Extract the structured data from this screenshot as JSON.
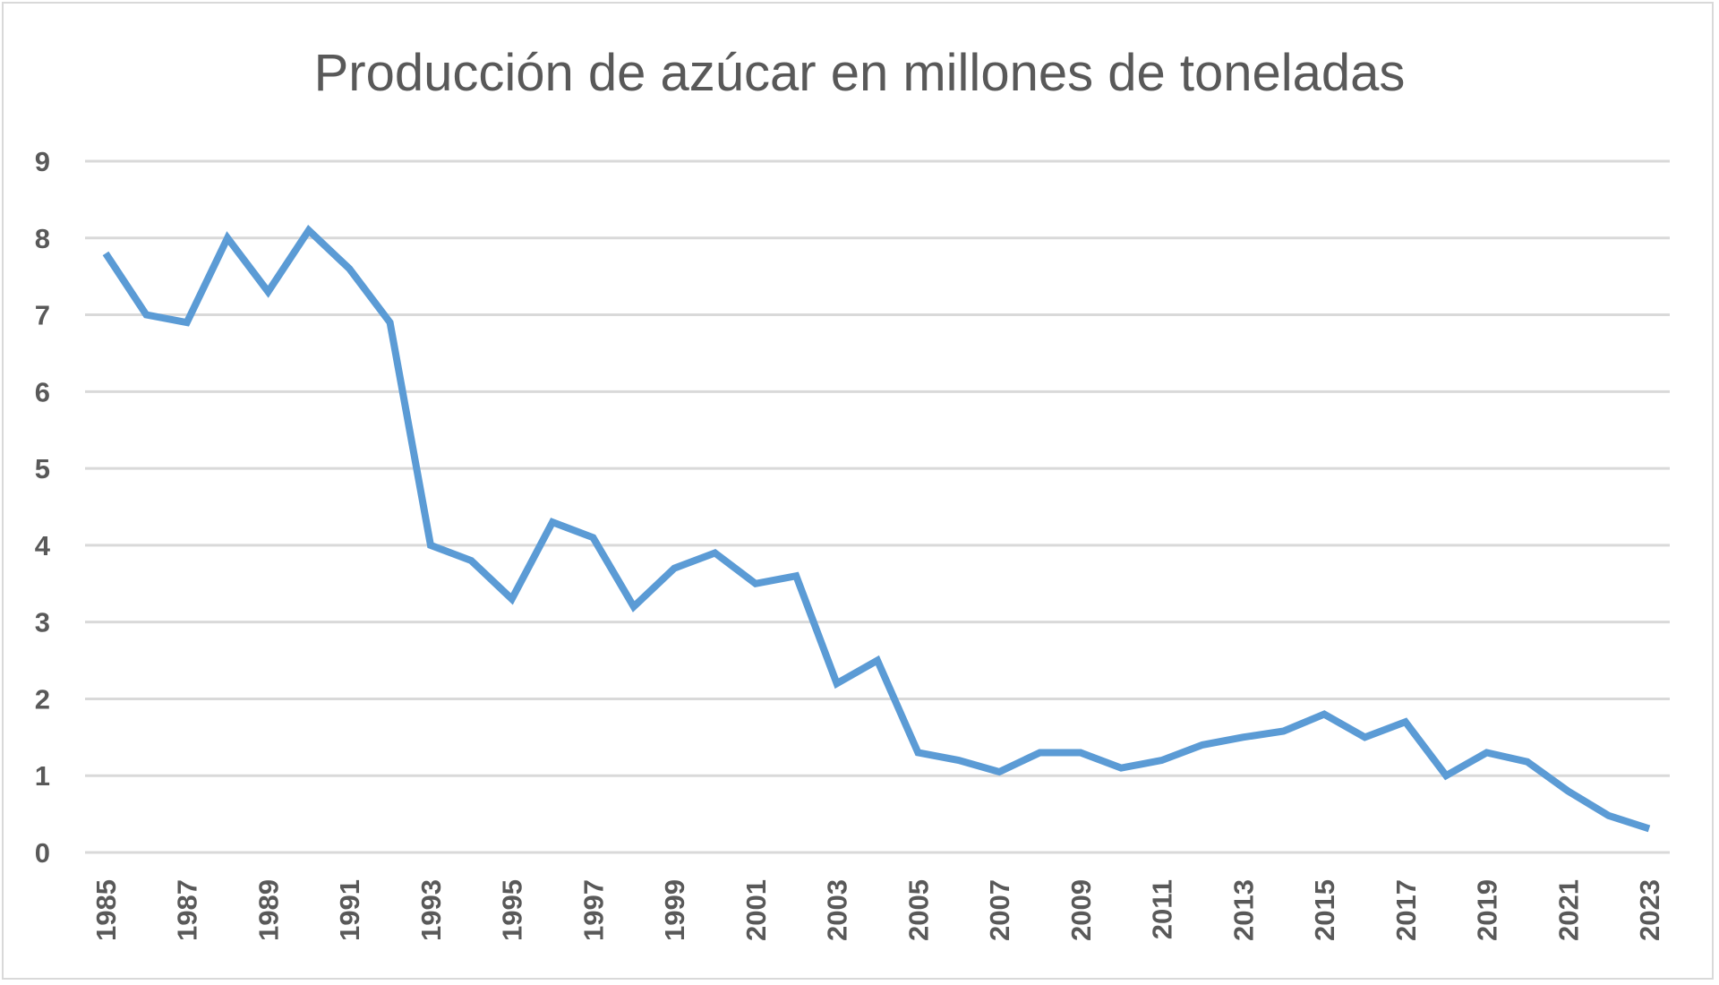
{
  "chart_data": {
    "type": "line",
    "title": "Producción de azúcar en millones de toneladas",
    "xlabel": "",
    "ylabel": "",
    "ylim": [
      0,
      9
    ],
    "y_ticks": [
      "0",
      "1",
      "2",
      "3",
      "4",
      "5",
      "6",
      "7",
      "8",
      "9"
    ],
    "x_tick_labels": [
      "1985",
      "1987",
      "1989",
      "1991",
      "1993",
      "1995",
      "1997",
      "1999",
      "2001",
      "2003",
      "2005",
      "2007",
      "2009",
      "2011",
      "2013",
      "2015",
      "2017",
      "2019",
      "2021",
      "2023"
    ],
    "grid": true,
    "legend": "none",
    "x": [
      1985,
      1986,
      1987,
      1988,
      1989,
      1990,
      1991,
      1992,
      1993,
      1994,
      1995,
      1996,
      1997,
      1998,
      1999,
      2000,
      2001,
      2002,
      2003,
      2004,
      2005,
      2006,
      2007,
      2008,
      2009,
      2010,
      2011,
      2012,
      2013,
      2014,
      2015,
      2016,
      2017,
      2018,
      2019,
      2020,
      2021,
      2022,
      2023
    ],
    "series": [
      {
        "color": "#5b9bd5",
        "values": [
          7.8,
          7.0,
          6.9,
          8.0,
          7.3,
          8.1,
          7.6,
          6.9,
          4.0,
          3.8,
          3.3,
          4.3,
          4.1,
          3.2,
          3.7,
          3.9,
          3.5,
          3.6,
          2.2,
          2.5,
          1.3,
          1.2,
          1.05,
          1.3,
          1.3,
          1.1,
          1.2,
          1.4,
          1.5,
          1.58,
          1.8,
          1.5,
          1.7,
          1.0,
          1.3,
          1.18,
          0.8,
          0.48,
          0.31
        ]
      }
    ]
  }
}
